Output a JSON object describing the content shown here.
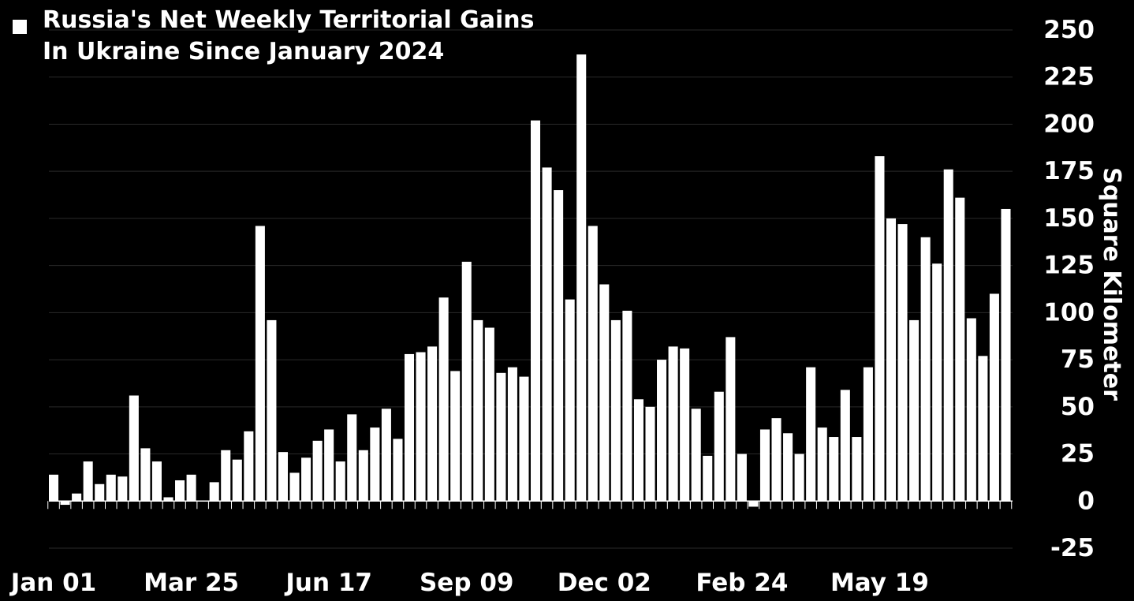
{
  "chart_data": {
    "type": "bar",
    "title": "Russia's Net Weekly Territorial Gains In Ukraine Since January 2024",
    "title_lines": [
      "Russia's Net Weekly Territorial Gains",
      "In Ukraine Since January 2024"
    ],
    "ylabel": "Square Kilometer",
    "xlabel": "",
    "ylim": [
      -25,
      250
    ],
    "yticks": [
      250,
      225,
      200,
      175,
      150,
      125,
      100,
      75,
      50,
      25,
      0,
      -25
    ],
    "x_tick_labels": [
      {
        "label": "Jan 01",
        "index": 0
      },
      {
        "label": "Mar 25",
        "index": 12
      },
      {
        "label": "Jun 17",
        "index": 24
      },
      {
        "label": "Sep 09",
        "index": 36
      },
      {
        "label": "Dec 02",
        "index": 48
      },
      {
        "label": "Feb 24",
        "index": 60
      },
      {
        "label": "May 19",
        "index": 72
      }
    ],
    "grid": true,
    "legend_placement": "top-left",
    "colors": {
      "background": "#000000",
      "bar": "#ffffff",
      "text": "#ffffff",
      "grid": "#2a2a2a"
    },
    "values": [
      14,
      -2,
      4,
      21,
      9,
      14,
      13,
      56,
      28,
      21,
      2,
      11,
      14,
      0,
      10,
      27,
      22,
      37,
      146,
      96,
      26,
      15,
      23,
      32,
      38,
      21,
      46,
      27,
      39,
      49,
      33,
      78,
      79,
      82,
      108,
      69,
      127,
      96,
      92,
      68,
      71,
      66,
      202,
      177,
      165,
      107,
      237,
      146,
      115,
      96,
      101,
      54,
      50,
      75,
      82,
      81,
      49,
      24,
      58,
      87,
      25,
      -3,
      38,
      44,
      36,
      25,
      71,
      39,
      34,
      59,
      34,
      71,
      183,
      150,
      147,
      96,
      140,
      126,
      176,
      161,
      97,
      77,
      110,
      155
    ]
  }
}
